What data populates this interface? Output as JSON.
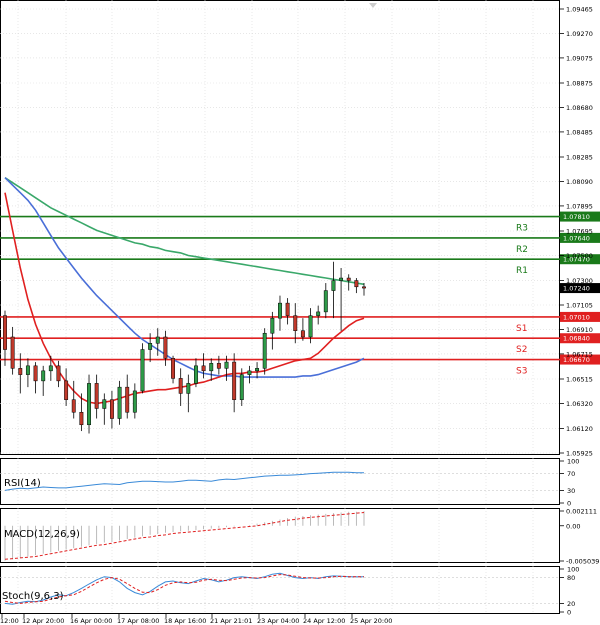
{
  "chart_data": {
    "type": "candlestick",
    "instrument_note": "",
    "main": {
      "ylim": [
        1.05925,
        1.09465
      ],
      "y_ticks": [
        "1.09465",
        "1.09270",
        "1.09075",
        "1.08875",
        "1.08680",
        "1.08485",
        "1.08285",
        "1.08090",
        "1.07895",
        "1.07695",
        "1.07500",
        "1.07300",
        "1.07105",
        "1.06910",
        "1.06715",
        "1.06515",
        "1.06320",
        "1.06120",
        "1.05925"
      ],
      "x_ticks": [
        "12:00",
        "12 Apr 20:00",
        "16 Apr 00:00",
        "17 Apr 08:00",
        "18 Apr 16:00",
        "21 Apr 21:01",
        "23 Apr 04:00",
        "24 Apr 12:00",
        "25 Apr 20:00"
      ],
      "levels": [
        {
          "name": "R3",
          "value": 1.0781,
          "label": "1.07810",
          "color": "#1a7a1a"
        },
        {
          "name": "R2",
          "value": 1.0764,
          "label": "1.07640",
          "color": "#1a7a1a"
        },
        {
          "name": "R1",
          "value": 1.0747,
          "label": "1.07470",
          "color": "#1a7a1a"
        },
        {
          "name": "S1",
          "value": 1.0701,
          "label": "1.07010",
          "color": "#e02020"
        },
        {
          "name": "S2",
          "value": 1.0684,
          "label": "1.06840",
          "color": "#e02020"
        },
        {
          "name": "S3",
          "value": 1.0667,
          "label": "1.06670",
          "color": "#e02020"
        }
      ],
      "level_text": [
        "R3",
        "R2",
        "R1",
        "S1",
        "S2",
        "S3"
      ],
      "last_price": {
        "value": 1.0724,
        "label": "1.07240"
      },
      "candles": [
        [
          1.0702,
          1.0706,
          1.0662,
          1.0675
        ],
        [
          1.0685,
          1.0693,
          1.0655,
          1.066
        ],
        [
          1.066,
          1.0672,
          1.064,
          1.0655
        ],
        [
          1.0655,
          1.0668,
          1.0645,
          1.0662
        ],
        [
          1.0662,
          1.0665,
          1.064,
          1.065
        ],
        [
          1.065,
          1.0662,
          1.0638,
          1.0658
        ],
        [
          1.0658,
          1.067,
          1.065,
          1.0662
        ],
        [
          1.0662,
          1.0666,
          1.0645,
          1.065
        ],
        [
          1.065,
          1.066,
          1.063,
          1.0635
        ],
        [
          1.0635,
          1.065,
          1.062,
          1.0625
        ],
        [
          1.0625,
          1.064,
          1.061,
          1.0615
        ],
        [
          1.0615,
          1.0655,
          1.0608,
          1.0648
        ],
        [
          1.0648,
          1.0655,
          1.062,
          1.0628
        ],
        [
          1.0628,
          1.064,
          1.0615,
          1.0635
        ],
        [
          1.0635,
          1.0642,
          1.0612,
          1.062
        ],
        [
          1.062,
          1.065,
          1.0615,
          1.0645
        ],
        [
          1.0645,
          1.0655,
          1.062,
          1.0625
        ],
        [
          1.0625,
          1.0648,
          1.062,
          1.0642
        ],
        [
          1.0642,
          1.068,
          1.064,
          1.0675
        ],
        [
          1.0675,
          1.0688,
          1.0665,
          1.068
        ],
        [
          1.068,
          1.0692,
          1.067,
          1.0685
        ],
        [
          1.0685,
          1.069,
          1.0662,
          1.0668
        ],
        [
          1.0668,
          1.067,
          1.0648,
          1.0652
        ],
        [
          1.0652,
          1.066,
          1.063,
          1.064
        ],
        [
          1.064,
          1.0655,
          1.0625,
          1.0648
        ],
        [
          1.0648,
          1.0668,
          1.0645,
          1.0662
        ],
        [
          1.0662,
          1.0672,
          1.0652,
          1.0658
        ],
        [
          1.0658,
          1.0668,
          1.065,
          1.0664
        ],
        [
          1.0664,
          1.067,
          1.0655,
          1.066
        ],
        [
          1.066,
          1.067,
          1.065,
          1.0665
        ],
        [
          1.0665,
          1.0672,
          1.0625,
          1.0635
        ],
        [
          1.0635,
          1.066,
          1.063,
          1.0655
        ],
        [
          1.0655,
          1.0662,
          1.0648,
          1.0658
        ],
        [
          1.0658,
          1.0665,
          1.0652,
          1.066
        ],
        [
          1.066,
          1.0692,
          1.0655,
          1.0688
        ],
        [
          1.0688,
          1.0705,
          1.0675,
          1.07
        ],
        [
          1.07,
          1.0718,
          1.069,
          1.0712
        ],
        [
          1.0712,
          1.0716,
          1.0695,
          1.0702
        ],
        [
          1.0702,
          1.0712,
          1.068,
          1.069
        ],
        [
          1.069,
          1.07,
          1.0682,
          1.0685
        ],
        [
          1.0685,
          1.0708,
          1.068,
          1.0702
        ],
        [
          1.0702,
          1.071,
          1.0695,
          1.0705
        ],
        [
          1.0705,
          1.0728,
          1.07,
          1.0722
        ],
        [
          1.0722,
          1.0745,
          1.07,
          1.073
        ],
        [
          1.073,
          1.074,
          1.069,
          1.0732
        ],
        [
          1.0732,
          1.0735,
          1.0722,
          1.073
        ],
        [
          1.073,
          1.0732,
          1.072,
          1.0725
        ],
        [
          1.0725,
          1.0728,
          1.0718,
          1.0724
        ]
      ],
      "ma_green": [
        1.0812,
        1.0808,
        1.0804,
        1.08,
        1.0796,
        1.0792,
        1.0788,
        1.0785,
        1.0782,
        1.0779,
        1.0776,
        1.0773,
        1.077,
        1.0768,
        1.0766,
        1.0764,
        1.0762,
        1.076,
        1.0759,
        1.0757,
        1.0756,
        1.0754,
        1.0753,
        1.0752,
        1.075,
        1.0749,
        1.0748,
        1.0747,
        1.0746,
        1.0745,
        1.0744,
        1.0743,
        1.0742,
        1.0741,
        1.074,
        1.0739,
        1.0738,
        1.0737,
        1.0736,
        1.0735,
        1.0734,
        1.0733,
        1.0732,
        1.0731,
        1.073,
        1.0729,
        1.0728,
        1.0727
      ],
      "ma_blue": [
        1.0812,
        1.0806,
        1.08,
        1.0794,
        1.0786,
        1.0776,
        1.0766,
        1.0756,
        1.0748,
        1.074,
        1.0732,
        1.0725,
        1.0718,
        1.0712,
        1.0706,
        1.07,
        1.0694,
        1.0688,
        1.0683,
        1.0679,
        1.0675,
        1.0671,
        1.0667,
        1.0664,
        1.0661,
        1.0658,
        1.0656,
        1.0655,
        1.0654,
        1.0654,
        1.0654,
        1.0653,
        1.0653,
        1.0653,
        1.0653,
        1.0653,
        1.0653,
        1.0653,
        1.0653,
        1.0654,
        1.0654,
        1.0655,
        1.0657,
        1.0659,
        1.0661,
        1.0663,
        1.0665,
        1.0668
      ],
      "ma_red": [
        1.08,
        1.077,
        1.074,
        1.0715,
        1.0695,
        1.068,
        1.0668,
        1.0658,
        1.0649,
        1.0642,
        1.0636,
        1.0633,
        1.0632,
        1.0633,
        1.0634,
        1.0636,
        1.0638,
        1.064,
        1.0641,
        1.0642,
        1.0643,
        1.0643,
        1.0644,
        1.0645,
        1.0646,
        1.0648,
        1.0649,
        1.0651,
        1.0653,
        1.0655,
        1.0656,
        1.0656,
        1.0657,
        1.0657,
        1.0658,
        1.066,
        1.0662,
        1.0664,
        1.0666,
        1.0667,
        1.0668,
        1.0672,
        1.0678,
        1.0684,
        1.0689,
        1.0694,
        1.0698,
        1.07
      ]
    },
    "rsi": {
      "label": "RSI(14)",
      "ylim": [
        0,
        100
      ],
      "y_ticks": [
        "100",
        "70",
        "30",
        "0"
      ],
      "values": [
        30,
        33,
        35,
        34,
        36,
        38,
        37,
        36,
        36,
        38,
        40,
        42,
        44,
        46,
        45,
        44,
        48,
        50,
        52,
        52,
        51,
        50,
        50,
        52,
        54,
        54,
        53,
        52,
        55,
        57,
        56,
        58,
        60,
        62,
        64,
        65,
        66,
        66,
        67,
        68,
        70,
        71,
        72,
        73,
        73,
        73,
        72,
        72
      ]
    },
    "macd": {
      "label": "MACD(12,26,9)",
      "y_ticks": [
        "0.002111",
        "0.00",
        "-0.005039"
      ],
      "ylim": [
        -0.005039,
        0.002111
      ],
      "histogram": [
        -0.005,
        -0.0048,
        -0.0046,
        -0.0044,
        -0.0042,
        -0.004,
        -0.0038,
        -0.0036,
        -0.0034,
        -0.0032,
        -0.003,
        -0.0028,
        -0.0026,
        -0.0024,
        -0.0023,
        -0.0021,
        -0.0019,
        -0.0017,
        -0.0015,
        -0.0013,
        -0.0012,
        -0.001,
        -0.0009,
        -0.0008,
        -0.0007,
        -0.0006,
        -0.0005,
        -0.0004,
        -0.0003,
        -0.0002,
        -0.0001,
        0.0,
        0.0001,
        0.0003,
        0.0005,
        0.0007,
        0.0009,
        0.0011,
        0.0013,
        0.0014,
        0.0015,
        0.0016,
        0.0017,
        0.0018,
        0.0019,
        0.002,
        0.002,
        0.0021
      ],
      "signal": [
        -0.0048,
        -0.0047,
        -0.0046,
        -0.0045,
        -0.0044,
        -0.0042,
        -0.004,
        -0.0038,
        -0.0036,
        -0.0034,
        -0.0032,
        -0.003,
        -0.0028,
        -0.0027,
        -0.0025,
        -0.0023,
        -0.0021,
        -0.0019,
        -0.0017,
        -0.0016,
        -0.0014,
        -0.0013,
        -0.0011,
        -0.001,
        -0.0009,
        -0.0008,
        -0.0007,
        -0.0006,
        -0.0005,
        -0.0004,
        -0.0003,
        -0.0002,
        -0.0001,
        0.0,
        0.0002,
        0.0004,
        0.0006,
        0.0008,
        0.0009,
        0.0011,
        0.0012,
        0.0013,
        0.0014,
        0.0015,
        0.0016,
        0.0017,
        0.0018,
        0.0019
      ]
    },
    "stoch": {
      "label": "Stoch(9,6,3)",
      "ylim": [
        0,
        100
      ],
      "y_ticks": [
        "100",
        "80",
        "20",
        "0"
      ],
      "main": [
        20,
        18,
        22,
        25,
        24,
        28,
        35,
        40,
        38,
        45,
        55,
        65,
        75,
        82,
        80,
        70,
        55,
        45,
        40,
        48,
        60,
        70,
        72,
        68,
        66,
        72,
        78,
        75,
        70,
        74,
        80,
        82,
        80,
        78,
        82,
        88,
        90,
        85,
        80,
        78,
        80,
        78,
        82,
        84,
        83,
        82,
        82,
        82
      ],
      "signal": [
        25,
        22,
        20,
        22,
        24,
        25,
        30,
        35,
        38,
        40,
        48,
        58,
        68,
        76,
        80,
        76,
        66,
        55,
        46,
        45,
        52,
        62,
        68,
        70,
        68,
        69,
        74,
        76,
        74,
        73,
        76,
        79,
        80,
        79,
        80,
        84,
        87,
        86,
        83,
        80,
        79,
        79,
        80,
        82,
        83,
        82,
        82,
        82
      ]
    }
  }
}
